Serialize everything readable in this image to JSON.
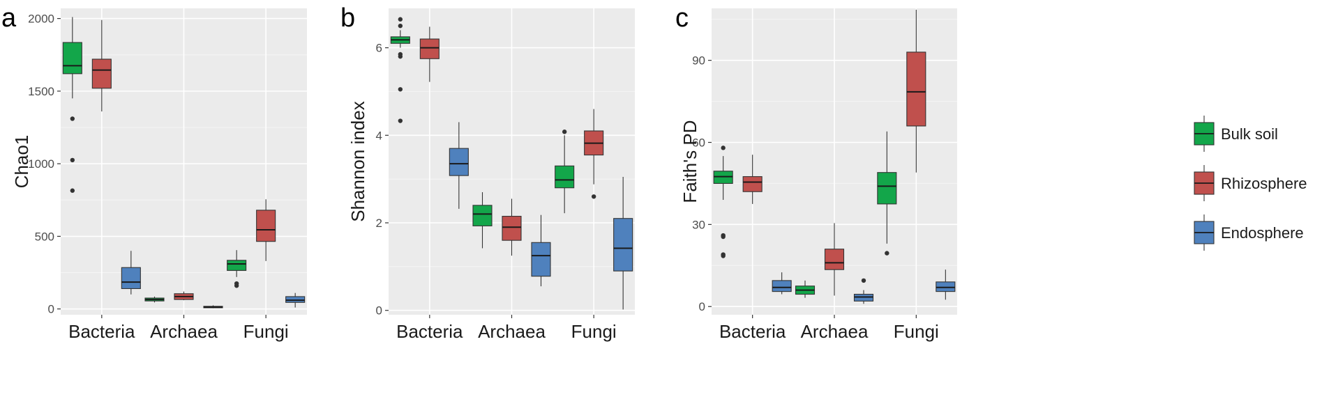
{
  "legend": {
    "placement": "right",
    "entries": [
      {
        "name": "Bulk soil",
        "color": "#13a64a"
      },
      {
        "name": "Rhizosphere",
        "color": "#c0504d"
      },
      {
        "name": "Endosphere",
        "color": "#4f81bd"
      }
    ]
  },
  "chart_data": [
    {
      "type": "boxplot",
      "panel": "a",
      "ylabel": "Chao1",
      "ylim": [
        -40,
        2070
      ],
      "yticks": [
        0,
        500,
        1000,
        1500,
        2000
      ],
      "categories": [
        "Bacteria",
        "Archaea",
        "Fungi"
      ],
      "series": [
        {
          "name": "Bulk soil",
          "boxes": [
            {
              "min": 1450,
              "q1": 1620,
              "median": 1675,
              "q3": 1835,
              "max": 2010,
              "outliers": [
                1310,
                1025,
                815
              ]
            },
            {
              "min": 45,
              "q1": 55,
              "median": 65,
              "q3": 75,
              "max": 85,
              "outliers": []
            },
            {
              "min": 220,
              "q1": 265,
              "median": 310,
              "q3": 335,
              "max": 405,
              "outliers": [
                175,
                160
              ]
            }
          ]
        },
        {
          "name": "Rhizosphere",
          "boxes": [
            {
              "min": 1360,
              "q1": 1520,
              "median": 1645,
              "q3": 1720,
              "max": 1990,
              "outliers": []
            },
            {
              "min": 60,
              "q1": 65,
              "median": 85,
              "q3": 105,
              "max": 120,
              "outliers": []
            },
            {
              "min": 330,
              "q1": 465,
              "median": 545,
              "q3": 680,
              "max": 755,
              "outliers": []
            }
          ]
        },
        {
          "name": "Endosphere",
          "boxes": [
            {
              "min": 100,
              "q1": 140,
              "median": 185,
              "q3": 285,
              "max": 400,
              "outliers": []
            },
            {
              "min": 5,
              "q1": 8,
              "median": 12,
              "q3": 18,
              "max": 25,
              "outliers": []
            },
            {
              "min": 10,
              "q1": 45,
              "median": 60,
              "q3": 85,
              "max": 110,
              "outliers": []
            }
          ]
        }
      ]
    },
    {
      "type": "boxplot",
      "panel": "b",
      "ylabel": "Shannon index",
      "ylim": [
        -0.1,
        6.9
      ],
      "yticks": [
        0,
        2,
        4,
        6
      ],
      "categories": [
        "Bacteria",
        "Archaea",
        "Fungi"
      ],
      "series": [
        {
          "name": "Bulk soil",
          "boxes": [
            {
              "min": 6.0,
              "q1": 6.1,
              "median": 6.18,
              "q3": 6.25,
              "max": 6.4,
              "outliers": [
                6.65,
                6.5,
                5.85,
                5.8,
                5.05,
                4.33
              ]
            },
            {
              "min": 1.42,
              "q1": 1.93,
              "median": 2.2,
              "q3": 2.4,
              "max": 2.7,
              "outliers": []
            },
            {
              "min": 2.22,
              "q1": 2.8,
              "median": 2.98,
              "q3": 3.3,
              "max": 4.0,
              "outliers": [
                4.08
              ]
            }
          ]
        },
        {
          "name": "Rhizosphere",
          "boxes": [
            {
              "min": 5.22,
              "q1": 5.75,
              "median": 6.0,
              "q3": 6.2,
              "max": 6.48,
              "outliers": []
            },
            {
              "min": 1.25,
              "q1": 1.6,
              "median": 1.9,
              "q3": 2.15,
              "max": 2.55,
              "outliers": []
            },
            {
              "min": 2.88,
              "q1": 3.55,
              "median": 3.82,
              "q3": 4.1,
              "max": 4.6,
              "outliers": [
                2.6
              ]
            }
          ]
        },
        {
          "name": "Endosphere",
          "boxes": [
            {
              "min": 2.32,
              "q1": 3.08,
              "median": 3.35,
              "q3": 3.7,
              "max": 4.3,
              "outliers": []
            },
            {
              "min": 0.55,
              "q1": 0.78,
              "median": 1.25,
              "q3": 1.55,
              "max": 2.18,
              "outliers": []
            },
            {
              "min": 0.02,
              "q1": 0.9,
              "median": 1.42,
              "q3": 2.1,
              "max": 3.05,
              "outliers": []
            }
          ]
        }
      ]
    },
    {
      "type": "boxplot",
      "panel": "c",
      "ylabel": "Faith's PD",
      "ylim": [
        -3,
        109
      ],
      "yticks": [
        0,
        30,
        60,
        90
      ],
      "categories": [
        "Bacteria",
        "Archaea",
        "Fungi"
      ],
      "series": [
        {
          "name": "Bulk soil",
          "boxes": [
            {
              "min": 39,
              "q1": 45,
              "median": 47.5,
              "q3": 49.5,
              "max": 55,
              "outliers": [
                58,
                26,
                25.5,
                19,
                18.5
              ]
            },
            {
              "min": 3.2,
              "q1": 4.5,
              "median": 6,
              "q3": 7.5,
              "max": 9.5,
              "outliers": []
            },
            {
              "min": 23,
              "q1": 37.5,
              "median": 44,
              "q3": 49,
              "max": 64,
              "outliers": [
                19.5
              ]
            }
          ]
        },
        {
          "name": "Rhizosphere",
          "boxes": [
            {
              "min": 37.5,
              "q1": 42,
              "median": 45.5,
              "q3": 47.5,
              "max": 55.5,
              "outliers": []
            },
            {
              "min": 4,
              "q1": 13.5,
              "median": 16,
              "q3": 21,
              "max": 30.5,
              "outliers": []
            },
            {
              "min": 49,
              "q1": 66,
              "median": 78.5,
              "q3": 93,
              "max": 108.5,
              "outliers": []
            }
          ]
        },
        {
          "name": "Endosphere",
          "boxes": [
            {
              "min": 4.5,
              "q1": 5.5,
              "median": 7,
              "q3": 9.5,
              "max": 12.5,
              "outliers": []
            },
            {
              "min": 1,
              "q1": 2,
              "median": 3.5,
              "q3": 4.5,
              "max": 6,
              "outliers": [
                9.5
              ]
            },
            {
              "min": 2.5,
              "q1": 5.5,
              "median": 7,
              "q3": 9,
              "max": 13.5,
              "outliers": []
            }
          ]
        }
      ]
    }
  ]
}
